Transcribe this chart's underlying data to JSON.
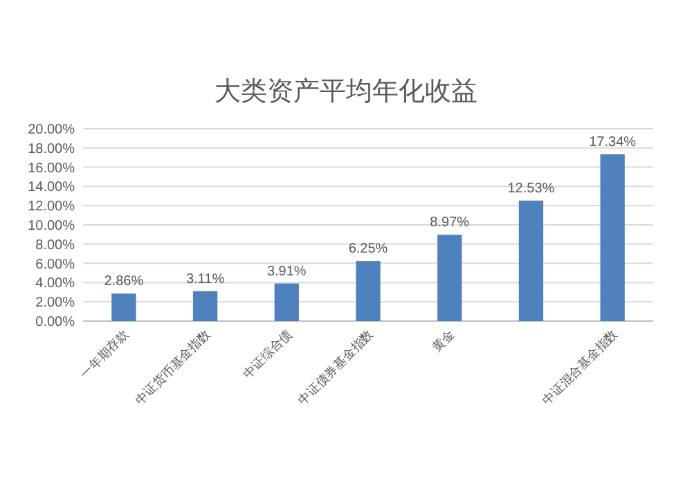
{
  "chart_data": {
    "type": "bar",
    "title": "大类资产平均年化收益",
    "categories": [
      "一年期存款",
      "中证货币基金指数",
      "中证综合债",
      "中证债券基金指数",
      "黄金",
      null,
      "中证混合基金指数"
    ],
    "values": [
      2.86,
      3.11,
      3.91,
      6.25,
      8.97,
      12.53,
      17.34
    ],
    "value_labels": [
      "2.86%",
      "3.11%",
      "3.91%",
      "6.25%",
      "8.97%",
      "12.53%",
      "17.34%"
    ],
    "color": "#4f81bd",
    "ylim": [
      0,
      20
    ],
    "yticks": [
      {
        "value": 0,
        "label": "0.00%"
      },
      {
        "value": 2,
        "label": "2.00%"
      },
      {
        "value": 4,
        "label": "4.00%"
      },
      {
        "value": 6,
        "label": "6.00%"
      },
      {
        "value": 8,
        "label": "8.00%"
      },
      {
        "value": 10,
        "label": "10.00%"
      },
      {
        "value": 12,
        "label": "12.00%"
      },
      {
        "value": 14,
        "label": "14.00%"
      },
      {
        "value": 16,
        "label": "16.00%"
      },
      {
        "value": 18,
        "label": "18.00%"
      },
      {
        "value": 20,
        "label": "20.00%"
      }
    ],
    "grid": "y"
  }
}
